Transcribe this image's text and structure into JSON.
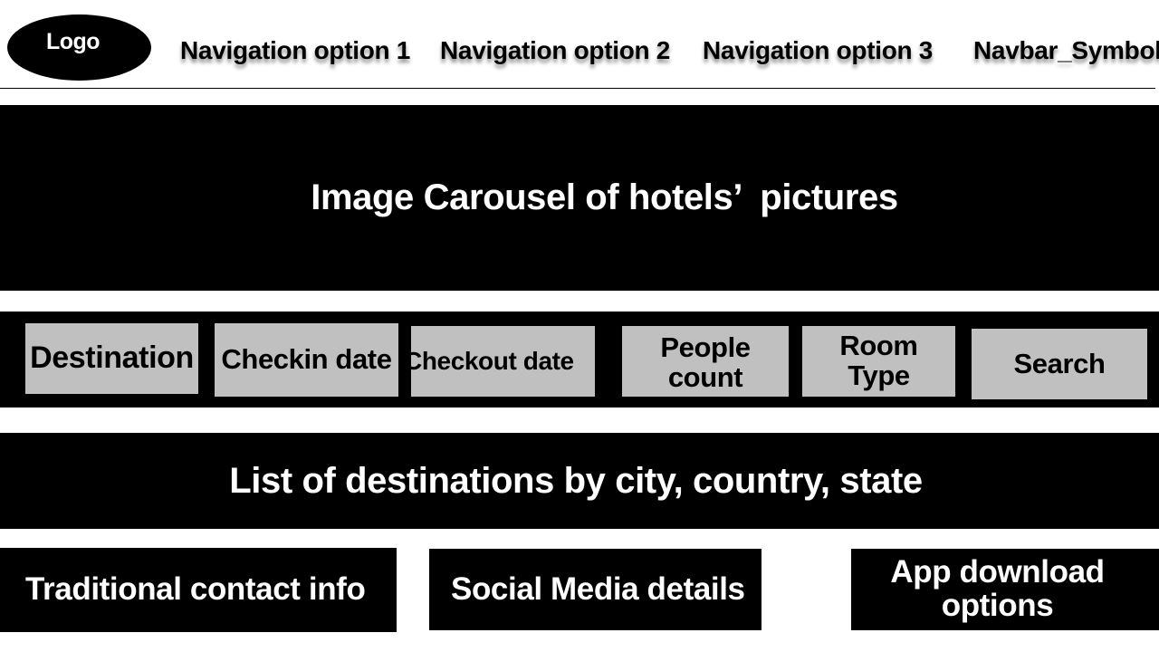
{
  "header": {
    "logo_label": "Logo",
    "nav": [
      {
        "label": "Navigation option 1"
      },
      {
        "label": "Navigation option 2"
      },
      {
        "label": "Navigation option 3"
      },
      {
        "label": "Navbar_Symbol"
      }
    ]
  },
  "carousel": {
    "label": "Image Carousel of hotels’  pictures"
  },
  "search_bar": {
    "destination_label": "Destination",
    "checkin_label": "Checkin date",
    "checkout_label": "Checkout date",
    "people_label": "People count",
    "room_type_label": "Room Type",
    "search_label": "Search"
  },
  "destinations": {
    "label": "List of destinations by city, country, state"
  },
  "footer": {
    "contact_label": "Traditional contact info",
    "social_label": "Social Media details",
    "app_label": "App download options"
  },
  "colors": {
    "background": "#ffffff",
    "block": "#000000",
    "field": "#c0c0c0",
    "text_dark": "#000000",
    "text_light": "#ffffff"
  }
}
